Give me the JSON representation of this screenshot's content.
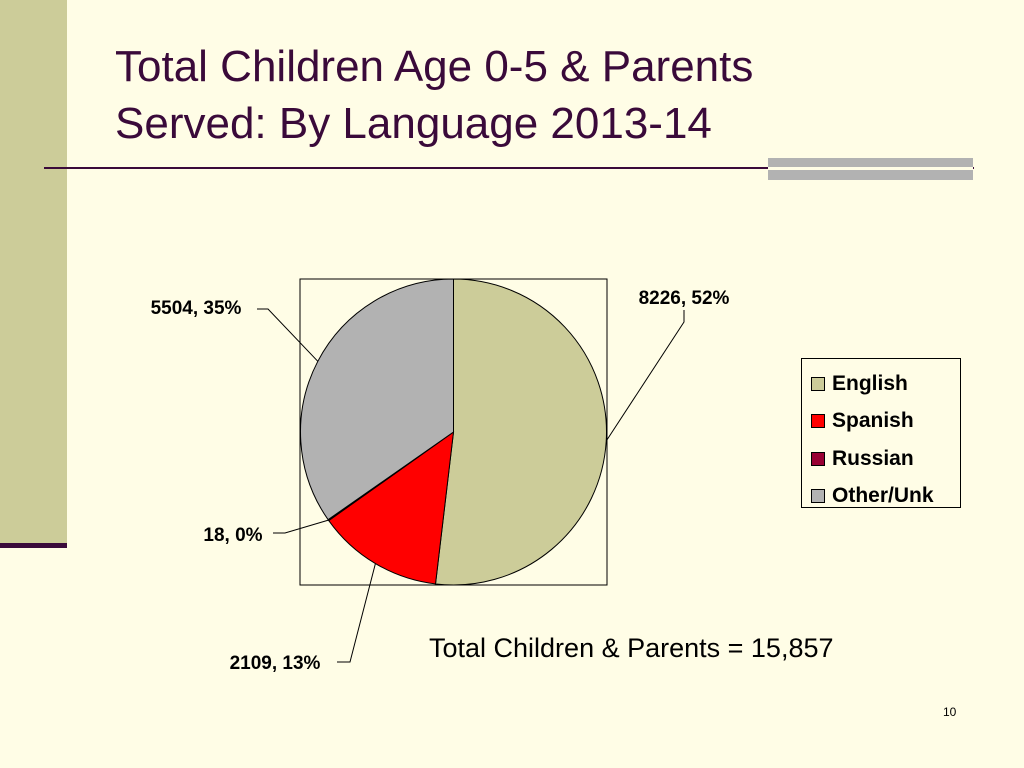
{
  "slide": {
    "title_line1": "Total Children Age 0-5 & Parents",
    "title_line2": "Served: By Language 2013-14",
    "total_text": "Total Children & Parents = 15,857",
    "page_number": "10"
  },
  "colors": {
    "background": "#FFFDE6",
    "accent_bar": "#CCCC99",
    "title_color": "#3A0A3A"
  },
  "chart_data": {
    "type": "pie",
    "slices": [
      {
        "name": "English",
        "value": 8226,
        "label": "8226, 52%",
        "color": "#CCCC99"
      },
      {
        "name": "Spanish",
        "value": 2109,
        "label": "2109, 13%",
        "color": "#FF0000"
      },
      {
        "name": "Russian",
        "value": 18,
        "label": "18, 0%",
        "color": "#990033"
      },
      {
        "name": "Other/Unk",
        "value": 5504,
        "label": "5504, 35%",
        "color": "#B2B2B2"
      }
    ],
    "legend": {
      "position": "right",
      "entries": [
        "English",
        "Spanish",
        "Russian",
        "Other/Unk"
      ]
    }
  }
}
